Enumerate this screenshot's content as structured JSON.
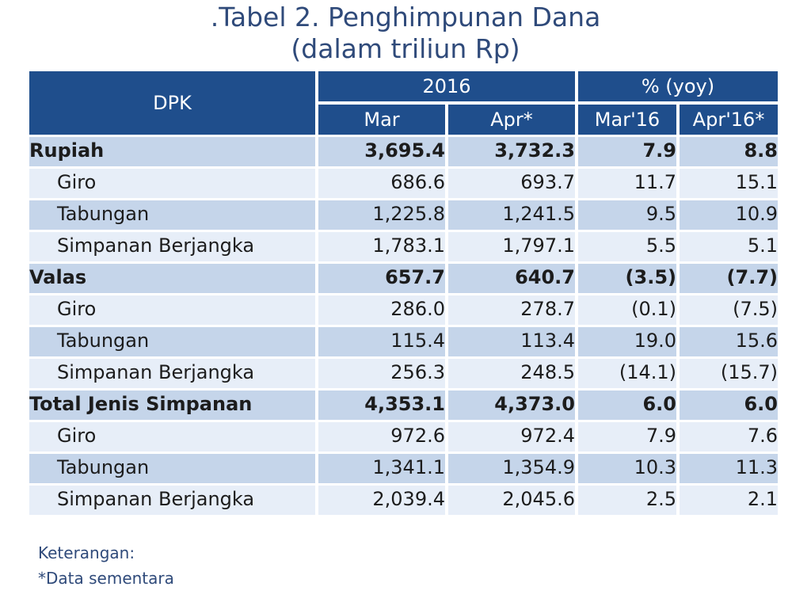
{
  "title": {
    "line1": ".Tabel 2. Penghimpunan Dana",
    "line2": "(dalam triliun Rp)"
  },
  "table": {
    "header": {
      "dpk": "DPK",
      "year": "2016",
      "yoy": "% (yoy)",
      "mar": "Mar",
      "apr": "Apr*",
      "mar16": "Mar'16",
      "apr16": "Apr'16*"
    },
    "rows": [
      {
        "label": "Rupiah",
        "mar": "3,695.4",
        "apr": "3,732.3",
        "mar16": "7.9",
        "apr16": "8.8"
      },
      {
        "label": "Giro",
        "mar": "686.6",
        "apr": "693.7",
        "mar16": "11.7",
        "apr16": "15.1"
      },
      {
        "label": "Tabungan",
        "mar": "1,225.8",
        "apr": "1,241.5",
        "mar16": "9.5",
        "apr16": "10.9"
      },
      {
        "label": "Simpanan Berjangka",
        "mar": "1,783.1",
        "apr": "1,797.1",
        "mar16": "5.5",
        "apr16": "5.1"
      },
      {
        "label": "Valas",
        "mar": "657.7",
        "apr": "640.7",
        "mar16": "(3.5)",
        "apr16": "(7.7)"
      },
      {
        "label": "Giro",
        "mar": "286.0",
        "apr": "278.7",
        "mar16": "(0.1)",
        "apr16": "(7.5)"
      },
      {
        "label": "Tabungan",
        "mar": "115.4",
        "apr": "113.4",
        "mar16": "19.0",
        "apr16": "15.6"
      },
      {
        "label": "Simpanan Berjangka",
        "mar": "256.3",
        "apr": "248.5",
        "mar16": "(14.1)",
        "apr16": "(15.7)"
      },
      {
        "label": "Total Jenis Simpanan",
        "mar": "4,353.1",
        "apr": "4,373.0",
        "mar16": "6.0",
        "apr16": "6.0"
      },
      {
        "label": "Giro",
        "mar": "972.6",
        "apr": "972.4",
        "mar16": "7.9",
        "apr16": "7.6"
      },
      {
        "label": "Tabungan",
        "mar": "1,341.1",
        "apr": "1,354.9",
        "mar16": "10.3",
        "apr16": "11.3"
      },
      {
        "label": "Simpanan Berjangka",
        "mar": "2,039.4",
        "apr": "2,045.6",
        "mar16": "2.5",
        "apr16": "2.1"
      }
    ]
  },
  "notes": {
    "line1": "Keterangan:",
    "line2": "*Data sementara"
  },
  "colors": {
    "header_bg": "#1f4e8c",
    "row_dark": "#c5d5ea",
    "row_light": "#e7eef8",
    "title": "#2f4a7a"
  }
}
